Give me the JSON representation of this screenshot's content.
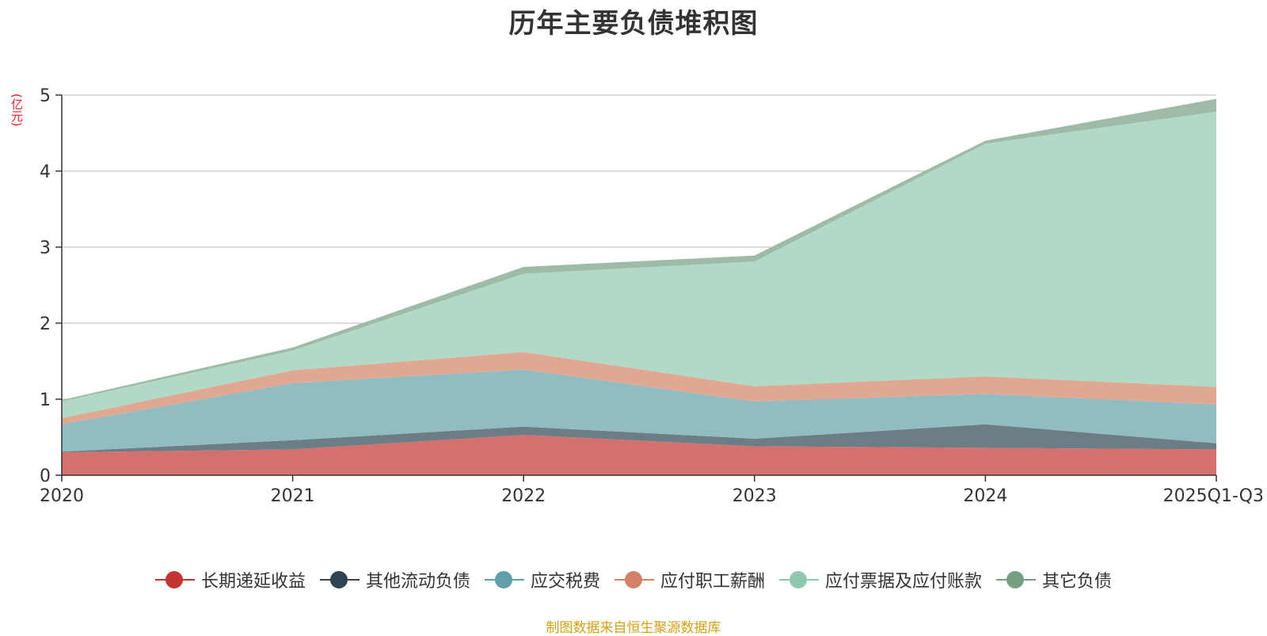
{
  "chart_data": {
    "type": "area",
    "stacked": true,
    "title": "历年主要负债堆积图",
    "ylabel": "(亿元)",
    "xlabel": "",
    "categories": [
      "2020",
      "2021",
      "2022",
      "2023",
      "2024",
      "2025Q1-Q3"
    ],
    "ylim": [
      0,
      5
    ],
    "yticks": [
      0,
      1,
      2,
      3,
      4,
      5
    ],
    "grid": true,
    "legend_position": "bottom",
    "series": [
      {
        "name": "长期递延收益",
        "values": [
          0.3,
          0.34,
          0.53,
          0.38,
          0.36,
          0.34
        ],
        "color": "#c23531",
        "fill": "#d4706d"
      },
      {
        "name": "其他流动负债",
        "values": [
          0.01,
          0.12,
          0.11,
          0.1,
          0.31,
          0.08
        ],
        "color": "#2f4554",
        "fill": "#6d7d86"
      },
      {
        "name": "应交税费",
        "values": [
          0.36,
          0.75,
          0.75,
          0.49,
          0.4,
          0.51
        ],
        "color": "#61a0a8",
        "fill": "#90bcc2"
      },
      {
        "name": "应付职工薪酬",
        "values": [
          0.08,
          0.17,
          0.23,
          0.2,
          0.23,
          0.23
        ],
        "color": "#d48265",
        "fill": "#e0a793"
      },
      {
        "name": "应付票据及应付账款",
        "values": [
          0.22,
          0.26,
          1.03,
          1.64,
          3.06,
          3.62
        ],
        "color": "#91c7ae",
        "fill": "#b2d8c6"
      },
      {
        "name": "其它负债",
        "values": [
          0.02,
          0.04,
          0.09,
          0.08,
          0.04,
          0.17
        ],
        "color": "#749f83",
        "fill": "#9ebba8"
      }
    ]
  },
  "footer": {
    "source": "制图数据来自恒生聚源数据库"
  }
}
